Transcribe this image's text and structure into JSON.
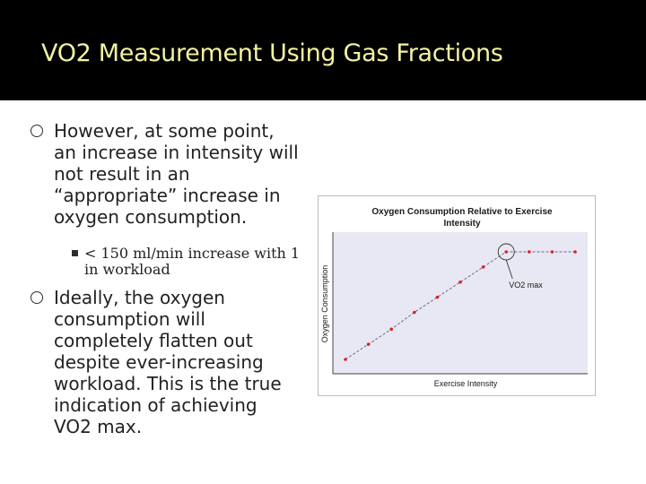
{
  "slide": {
    "title": "VO2 Measurement Using Gas Fractions",
    "bullets": [
      {
        "lines": [
          "However, at some point,",
          "an increase in intensity will",
          "not result in an",
          "“appropriate” increase in",
          "oxygen consumption."
        ],
        "sub": [
          "< 150 ml/min increase with 1",
          "in workload"
        ]
      },
      {
        "lines": [
          "Ideally, the oxygen",
          "consumption will",
          "completely flatten out",
          "despite ever-increasing",
          "workload. This is the true",
          "indication of achieving",
          "VO2 max."
        ]
      }
    ]
  },
  "colors": {
    "title_bar": "#000000",
    "title_text": "#f3f3a0",
    "plot_bg": "#e8e8f4",
    "marker": "#e0201c"
  },
  "chart_data": {
    "type": "scatter",
    "title": "Oxygen Consumption Relative to Exercise Intensity",
    "xlabel": "Exercise Intensity",
    "ylabel": "Oxygen Consumption",
    "annotation": "VO2 max",
    "x": [
      1,
      2,
      3,
      4,
      5,
      6,
      7,
      8,
      9,
      10,
      11
    ],
    "y": [
      1.0,
      1.9,
      2.8,
      3.8,
      4.7,
      5.6,
      6.5,
      7.4,
      7.4,
      7.4,
      7.4
    ],
    "vo2max_index": 7
  }
}
